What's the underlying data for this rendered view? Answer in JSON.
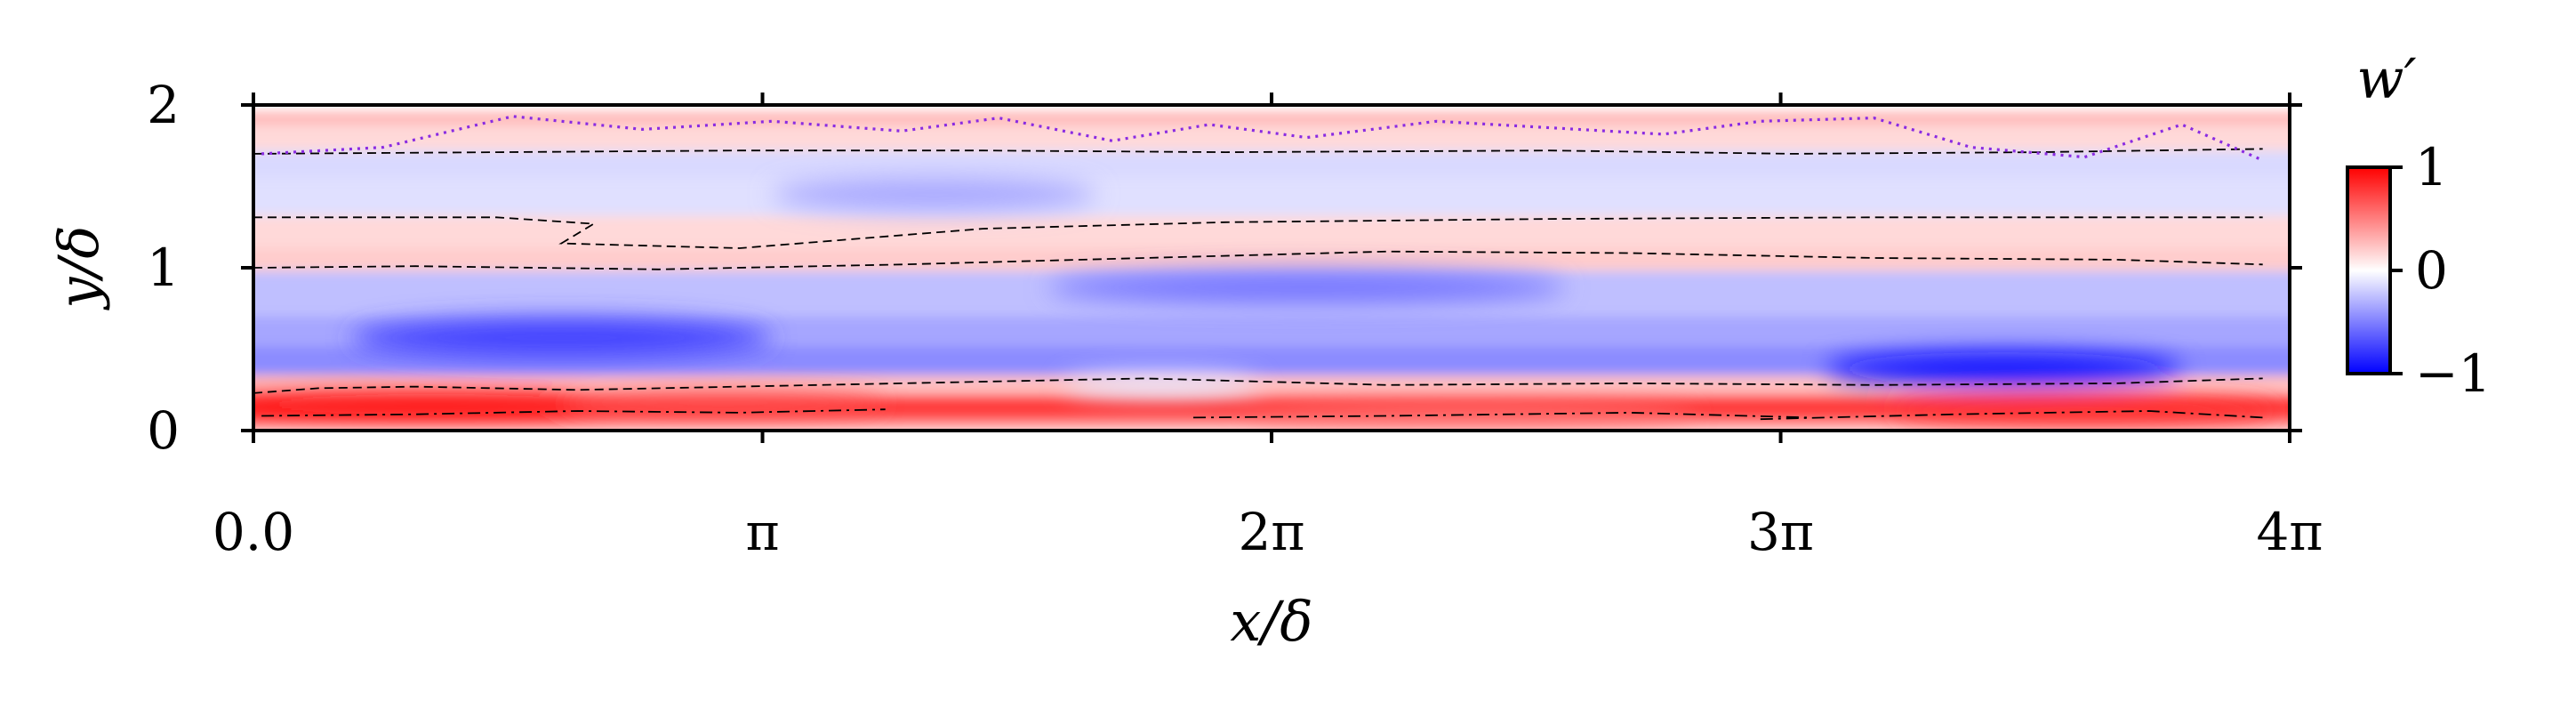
{
  "chart_data": {
    "type": "heatmap",
    "title": "",
    "xlabel": "x/δ",
    "ylabel": "y/δ",
    "xlim": [
      0,
      12.566
    ],
    "ylim": [
      0,
      2
    ],
    "x_ticks": [
      {
        "value": 0,
        "label": "0.0"
      },
      {
        "value": 3.1416,
        "label": "π"
      },
      {
        "value": 6.2832,
        "label": "2π"
      },
      {
        "value": 9.4248,
        "label": "3π"
      },
      {
        "value": 12.566,
        "label": "4π"
      }
    ],
    "y_ticks": [
      {
        "value": 0,
        "label": "0"
      },
      {
        "value": 1,
        "label": "1"
      },
      {
        "value": 2,
        "label": "2"
      }
    ],
    "colorbar": {
      "label": "w′",
      "colormap": "bwr",
      "range": [
        -1,
        1
      ],
      "ticks": [
        {
          "value": 1,
          "label": "1"
        },
        {
          "value": 0,
          "label": "0"
        },
        {
          "value": -1,
          "label": "−1"
        }
      ],
      "colors": {
        "low": "#0000ff",
        "mid": "#ffffff",
        "high": "#ff0000"
      }
    },
    "field_bands": [
      {
        "y": [
          0.0,
          0.06
        ],
        "w": 0.35
      },
      {
        "y": [
          0.06,
          0.22
        ],
        "w": 0.75
      },
      {
        "y": [
          0.22,
          0.34
        ],
        "w": 0.25
      },
      {
        "y": [
          0.34,
          0.52
        ],
        "w": -0.45
      },
      {
        "y": [
          0.52,
          0.7
        ],
        "w": -0.35
      },
      {
        "y": [
          0.7,
          0.98
        ],
        "w": -0.25
      },
      {
        "y": [
          0.98,
          1.12
        ],
        "w": 0.2
      },
      {
        "y": [
          1.12,
          1.32
        ],
        "w": 0.15
      },
      {
        "y": [
          1.32,
          1.55
        ],
        "w": -0.12
      },
      {
        "y": [
          1.55,
          1.72
        ],
        "w": -0.15
      },
      {
        "y": [
          1.72,
          1.88
        ],
        "w": 0.15
      },
      {
        "y": [
          1.88,
          1.96
        ],
        "w": 0.28
      }
    ],
    "field_patches": [
      {
        "cx": 1.1,
        "cy": 0.16,
        "rx": 1.4,
        "ry": 0.07,
        "w": 0.95
      },
      {
        "cx": 2.9,
        "cy": 0.17,
        "rx": 1.0,
        "ry": 0.06,
        "w": 0.7
      },
      {
        "cx": 1.9,
        "cy": 0.57,
        "rx": 1.3,
        "ry": 0.12,
        "w": -0.75
      },
      {
        "cx": 6.5,
        "cy": 0.88,
        "rx": 1.6,
        "ry": 0.1,
        "w": -0.55
      },
      {
        "cx": 10.8,
        "cy": 0.38,
        "rx": 1.1,
        "ry": 0.1,
        "w": -0.95
      },
      {
        "cx": 11.3,
        "cy": 0.12,
        "rx": 1.2,
        "ry": 0.08,
        "w": 0.8
      },
      {
        "cx": 7.5,
        "cy": 0.1,
        "rx": 1.4,
        "ry": 0.06,
        "w": 0.55
      },
      {
        "cx": 4.2,
        "cy": 1.45,
        "rx": 1.0,
        "ry": 0.1,
        "w": -0.35
      },
      {
        "cx": 5.6,
        "cy": 0.28,
        "rx": 0.6,
        "ry": 0.07,
        "w": -0.1
      }
    ],
    "contour_series": [
      {
        "style": "dashed",
        "x": [
          0.0,
          0.4,
          1.0,
          2.0,
          3.0,
          4.0,
          5.5,
          7.0,
          8.5,
          10.0,
          11.5,
          12.4
        ],
        "y": [
          0.23,
          0.26,
          0.27,
          0.25,
          0.27,
          0.29,
          0.32,
          0.28,
          0.29,
          0.28,
          0.29,
          0.32
        ]
      },
      {
        "style": "dashed",
        "x": [
          0.0,
          1.0,
          2.5,
          4.0,
          5.5,
          7.0,
          8.5,
          10.0,
          11.5,
          12.4
        ],
        "y": [
          1.0,
          1.01,
          0.99,
          1.02,
          1.06,
          1.1,
          1.09,
          1.06,
          1.05,
          1.02
        ]
      },
      {
        "style": "dashed",
        "x": [
          0.0,
          1.5,
          2.1,
          1.9,
          3.0,
          4.5,
          6.0,
          8.0,
          10.0,
          12.4
        ],
        "y": [
          1.31,
          1.31,
          1.27,
          1.15,
          1.12,
          1.24,
          1.28,
          1.3,
          1.31,
          1.31
        ]
      },
      {
        "style": "dashed",
        "x": [
          0.0,
          1.5,
          3.0,
          4.5,
          6.0,
          8.0,
          9.5,
          11.0,
          12.4
        ],
        "y": [
          1.7,
          1.71,
          1.72,
          1.72,
          1.71,
          1.72,
          1.7,
          1.71,
          1.73
        ]
      },
      {
        "style": "dotted",
        "x": [
          0.05,
          0.8,
          1.6,
          2.4,
          3.2,
          4.0,
          4.6,
          5.3,
          5.9,
          6.5,
          7.3,
          8.0,
          8.7,
          9.3,
          10.0,
          10.6,
          11.3,
          11.9,
          12.4
        ],
        "y": [
          1.7,
          1.74,
          1.93,
          1.85,
          1.9,
          1.84,
          1.92,
          1.78,
          1.88,
          1.8,
          1.9,
          1.86,
          1.82,
          1.9,
          1.92,
          1.74,
          1.68,
          1.88,
          1.66
        ]
      },
      {
        "style": "dashdot",
        "x": [
          0.05,
          1.0,
          2.0,
          3.0,
          3.9
        ],
        "y": [
          0.09,
          0.1,
          0.12,
          0.11,
          0.13
        ]
      },
      {
        "style": "dashdot",
        "x": [
          5.8,
          7.0,
          8.5,
          9.6
        ],
        "y": [
          0.08,
          0.09,
          0.11,
          0.08
        ]
      },
      {
        "style": "dashdot",
        "x": [
          9.3,
          10.5,
          11.7,
          12.4
        ],
        "y": [
          0.07,
          0.1,
          0.12,
          0.08
        ]
      }
    ]
  }
}
